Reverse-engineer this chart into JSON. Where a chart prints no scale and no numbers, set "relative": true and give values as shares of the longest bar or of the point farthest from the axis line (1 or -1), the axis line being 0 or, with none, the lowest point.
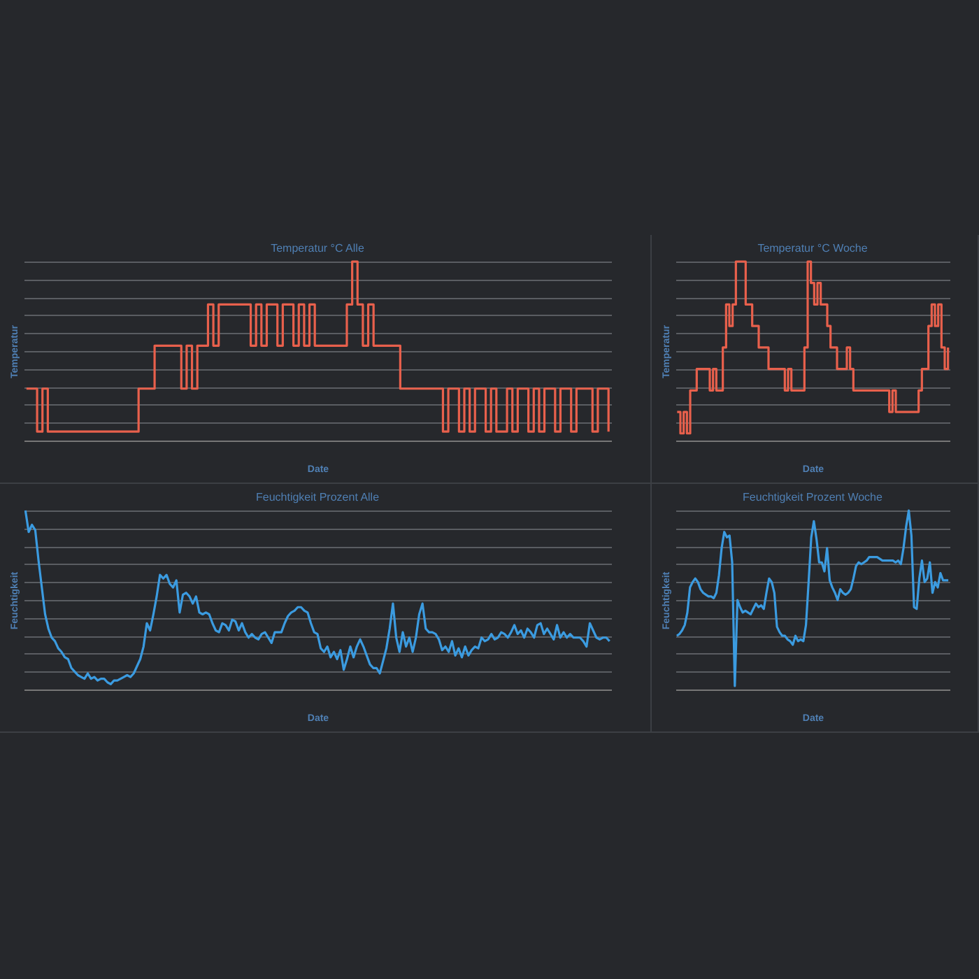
{
  "chart_data": [
    {
      "type": "step",
      "title": "Temperatur °C Alle",
      "xlabel": "Date",
      "ylabel": "Temperatur",
      "relative": true,
      "grid": "y",
      "categories": [
        null,
        null,
        null,
        null,
        null,
        null,
        null,
        null,
        null,
        null,
        null,
        null,
        null,
        null,
        null,
        null,
        null,
        null,
        null,
        null,
        null,
        null,
        null,
        null,
        null,
        null,
        null,
        null,
        null,
        null,
        null,
        null,
        null,
        null,
        null,
        null,
        null,
        null,
        null,
        null,
        null,
        null,
        null,
        null,
        null,
        null,
        null,
        null,
        null,
        null,
        null,
        null,
        null,
        null,
        null,
        null,
        null,
        null,
        null,
        null,
        null,
        null,
        null,
        null,
        null,
        null,
        null,
        null,
        null,
        null,
        null,
        null,
        null,
        null,
        null,
        null,
        null,
        null,
        null,
        null,
        null,
        null,
        null,
        null,
        null,
        null,
        null,
        null,
        null,
        null,
        null,
        null,
        null,
        null,
        null,
        null,
        null,
        null,
        null,
        null,
        null,
        null,
        null,
        null,
        null,
        null,
        null,
        null,
        null,
        null
      ],
      "series": [
        {
          "color": "#e8604c",
          "values": [
            0.29,
            0.29,
            0.05,
            0.29,
            0.05,
            0.05,
            0.05,
            0.05,
            0.05,
            0.05,
            0.05,
            0.05,
            0.05,
            0.05,
            0.05,
            0.05,
            0.05,
            0.05,
            0.05,
            0.05,
            0.05,
            0.29,
            0.29,
            0.29,
            0.53,
            0.53,
            0.53,
            0.53,
            0.53,
            0.29,
            0.53,
            0.29,
            0.53,
            0.53,
            0.76,
            0.53,
            0.76,
            0.76,
            0.76,
            0.76,
            0.76,
            0.76,
            0.53,
            0.76,
            0.53,
            0.76,
            0.76,
            0.53,
            0.76,
            0.76,
            0.53,
            0.76,
            0.53,
            0.76,
            0.53,
            0.53,
            0.53,
            0.53,
            0.53,
            0.53,
            0.76,
            1.0,
            0.76,
            0.53,
            0.76,
            0.53,
            0.53,
            0.53,
            0.53,
            0.53,
            0.29,
            0.29,
            0.29,
            0.29,
            0.29,
            0.29,
            0.29,
            0.29,
            0.05,
            0.29,
            0.29,
            0.05,
            0.29,
            0.05,
            0.29,
            0.29,
            0.05,
            0.29,
            0.05,
            0.05,
            0.29,
            0.05,
            0.29,
            0.29,
            0.05,
            0.29,
            0.05,
            0.29,
            0.29,
            0.05,
            0.29,
            0.29,
            0.05,
            0.29,
            0.29,
            0.29,
            0.05,
            0.29,
            0.29,
            0.05
          ]
        }
      ]
    },
    {
      "type": "step",
      "title": "Temperatur °C Woche",
      "xlabel": "Date",
      "ylabel": "Temperatur",
      "relative": true,
      "grid": "y",
      "categories": [
        null,
        null,
        null,
        null,
        null,
        null,
        null,
        null,
        null,
        null,
        null,
        null,
        null,
        null,
        null,
        null,
        null,
        null,
        null,
        null,
        null,
        null,
        null,
        null,
        null,
        null,
        null,
        null,
        null,
        null,
        null,
        null,
        null,
        null,
        null,
        null,
        null,
        null,
        null,
        null,
        null,
        null,
        null,
        null,
        null,
        null,
        null,
        null,
        null,
        null,
        null,
        null,
        null,
        null,
        null,
        null,
        null,
        null,
        null,
        null,
        null,
        null,
        null,
        null,
        null,
        null,
        null,
        null,
        null,
        null,
        null,
        null,
        null,
        null,
        null,
        null,
        null,
        null,
        null,
        null,
        null,
        null,
        null,
        null
      ],
      "series": [
        {
          "color": "#e8604c",
          "values": [
            0.16,
            0.04,
            0.16,
            0.04,
            0.28,
            0.28,
            0.4,
            0.4,
            0.4,
            0.4,
            0.28,
            0.4,
            0.28,
            0.28,
            0.52,
            0.76,
            0.64,
            0.76,
            1.0,
            1.0,
            1.0,
            0.76,
            0.76,
            0.64,
            0.64,
            0.52,
            0.52,
            0.52,
            0.4,
            0.4,
            0.4,
            0.4,
            0.4,
            0.28,
            0.4,
            0.28,
            0.28,
            0.28,
            0.28,
            0.52,
            1.0,
            0.88,
            0.76,
            0.88,
            0.76,
            0.76,
            0.64,
            0.52,
            0.52,
            0.4,
            0.4,
            0.4,
            0.52,
            0.4,
            0.28,
            0.28,
            0.28,
            0.28,
            0.28,
            0.28,
            0.28,
            0.28,
            0.28,
            0.28,
            0.28,
            0.16,
            0.28,
            0.16,
            0.16,
            0.16,
            0.16,
            0.16,
            0.16,
            0.16,
            0.28,
            0.4,
            0.4,
            0.64,
            0.76,
            0.64,
            0.76,
            0.52,
            0.4,
            0.52
          ]
        }
      ]
    },
    {
      "type": "line",
      "title": "Feuchtigkeit Prozent Alle",
      "xlabel": "Date",
      "ylabel": "Feuchtigkeit",
      "relative": true,
      "grid": "y",
      "categories": [
        null,
        null,
        null,
        null,
        null,
        null,
        null,
        null,
        null,
        null,
        null,
        null,
        null,
        null,
        null,
        null,
        null,
        null,
        null,
        null,
        null,
        null,
        null,
        null,
        null,
        null,
        null,
        null,
        null,
        null,
        null,
        null,
        null,
        null,
        null,
        null,
        null,
        null,
        null,
        null,
        null,
        null,
        null,
        null,
        null,
        null,
        null,
        null,
        null,
        null,
        null,
        null,
        null,
        null,
        null,
        null,
        null,
        null,
        null,
        null,
        null,
        null,
        null,
        null,
        null,
        null,
        null,
        null,
        null,
        null,
        null,
        null,
        null,
        null,
        null,
        null,
        null,
        null,
        null,
        null,
        null,
        null,
        null,
        null,
        null,
        null,
        null,
        null,
        null,
        null,
        null,
        null,
        null,
        null,
        null,
        null,
        null,
        null,
        null,
        null,
        null,
        null,
        null,
        null,
        null,
        null,
        null,
        null,
        null,
        null,
        null,
        null,
        null,
        null,
        null,
        null,
        null,
        null,
        null,
        null,
        null,
        null,
        null,
        null,
        null,
        null,
        null,
        null,
        null,
        null,
        null,
        null,
        null,
        null,
        null,
        null,
        null,
        null,
        null,
        null,
        null,
        null,
        null,
        null,
        null,
        null,
        null,
        null,
        null,
        null,
        null,
        null,
        null,
        null,
        null,
        null,
        null,
        null,
        null,
        null,
        null,
        null,
        null,
        null,
        null,
        null,
        null,
        null,
        null,
        null,
        null,
        null,
        null,
        null,
        null,
        null,
        null,
        null,
        null
      ],
      "series": [
        {
          "color": "#3b9be0",
          "values": [
            1.0,
            0.88,
            0.92,
            0.89,
            0.72,
            0.57,
            0.42,
            0.34,
            0.29,
            0.27,
            0.23,
            0.21,
            0.18,
            0.17,
            0.12,
            0.1,
            0.08,
            0.07,
            0.06,
            0.09,
            0.06,
            0.07,
            0.05,
            0.06,
            0.06,
            0.04,
            0.03,
            0.05,
            0.05,
            0.06,
            0.07,
            0.08,
            0.07,
            0.09,
            0.13,
            0.17,
            0.24,
            0.37,
            0.33,
            0.42,
            0.52,
            0.64,
            0.62,
            0.64,
            0.59,
            0.57,
            0.61,
            0.43,
            0.53,
            0.54,
            0.52,
            0.48,
            0.52,
            0.43,
            0.42,
            0.43,
            0.42,
            0.37,
            0.33,
            0.32,
            0.37,
            0.36,
            0.33,
            0.39,
            0.38,
            0.33,
            0.37,
            0.32,
            0.29,
            0.31,
            0.29,
            0.28,
            0.31,
            0.32,
            0.29,
            0.26,
            0.32,
            0.32,
            0.32,
            0.37,
            0.41,
            0.43,
            0.44,
            0.46,
            0.46,
            0.44,
            0.43,
            0.37,
            0.32,
            0.31,
            0.23,
            0.21,
            0.24,
            0.18,
            0.21,
            0.17,
            0.22,
            0.11,
            0.17,
            0.24,
            0.18,
            0.24,
            0.28,
            0.24,
            0.19,
            0.14,
            0.12,
            0.12,
            0.09,
            0.16,
            0.23,
            0.34,
            0.48,
            0.29,
            0.21,
            0.32,
            0.24,
            0.29,
            0.21,
            0.29,
            0.42,
            0.48,
            0.34,
            0.32,
            0.32,
            0.31,
            0.28,
            0.22,
            0.24,
            0.21,
            0.27,
            0.19,
            0.23,
            0.18,
            0.24,
            0.19,
            0.22,
            0.24,
            0.23,
            0.29,
            0.27,
            0.28,
            0.31,
            0.28,
            0.29,
            0.32,
            0.31,
            0.29,
            0.32,
            0.36,
            0.31,
            0.33,
            0.29,
            0.34,
            0.32,
            0.29,
            0.36,
            0.37,
            0.31,
            0.34,
            0.31,
            0.28,
            0.36,
            0.29,
            0.32,
            0.29,
            0.31,
            0.29,
            0.29,
            0.29,
            0.27,
            0.24,
            0.37,
            0.33,
            0.29,
            0.28,
            0.29,
            0.29,
            0.27
          ]
        }
      ]
    },
    {
      "type": "line",
      "title": "Feuchtigkeit Prozent Woche",
      "xlabel": "Date",
      "ylabel": "Feuchtigkeit",
      "relative": true,
      "grid": "y",
      "categories": [
        null,
        null,
        null,
        null,
        null,
        null,
        null,
        null,
        null,
        null,
        null,
        null,
        null,
        null,
        null,
        null,
        null,
        null,
        null,
        null,
        null,
        null,
        null,
        null,
        null,
        null,
        null,
        null,
        null,
        null,
        null,
        null,
        null,
        null,
        null,
        null,
        null,
        null,
        null,
        null,
        null,
        null,
        null,
        null,
        null,
        null,
        null,
        null,
        null,
        null,
        null,
        null,
        null,
        null,
        null,
        null,
        null,
        null,
        null,
        null,
        null,
        null,
        null,
        null,
        null,
        null,
        null,
        null,
        null,
        null,
        null,
        null,
        null,
        null,
        null,
        null,
        null,
        null,
        null,
        null,
        null,
        null,
        null,
        null,
        null,
        null,
        null,
        null,
        null,
        null,
        null,
        null,
        null,
        null,
        null,
        null,
        null,
        null,
        null,
        null,
        null,
        null,
        null,
        null
      ],
      "series": [
        {
          "color": "#3b9be0",
          "values": [
            0.3,
            0.31,
            0.33,
            0.36,
            0.43,
            0.57,
            0.6,
            0.62,
            0.6,
            0.56,
            0.54,
            0.53,
            0.52,
            0.52,
            0.51,
            0.54,
            0.64,
            0.79,
            0.88,
            0.85,
            0.86,
            0.71,
            0.02,
            0.5,
            0.46,
            0.43,
            0.44,
            0.43,
            0.42,
            0.45,
            0.48,
            0.46,
            0.47,
            0.45,
            0.54,
            0.62,
            0.6,
            0.54,
            0.35,
            0.32,
            0.3,
            0.3,
            0.28,
            0.27,
            0.25,
            0.3,
            0.27,
            0.28,
            0.27,
            0.36,
            0.6,
            0.85,
            0.94,
            0.84,
            0.71,
            0.71,
            0.66,
            0.79,
            0.61,
            0.57,
            0.54,
            0.5,
            0.56,
            0.54,
            0.53,
            0.54,
            0.56,
            0.62,
            0.69,
            0.71,
            0.7,
            0.71,
            0.72,
            0.74,
            0.74,
            0.74,
            0.74,
            0.73,
            0.72,
            0.72,
            0.72,
            0.72,
            0.72,
            0.71,
            0.72,
            0.7,
            0.79,
            0.91,
            1.0,
            0.86,
            0.46,
            0.45,
            0.62,
            0.72,
            0.6,
            0.62,
            0.71,
            0.54,
            0.6,
            0.57,
            0.65,
            0.61,
            0.61,
            0.61
          ]
        }
      ]
    }
  ]
}
